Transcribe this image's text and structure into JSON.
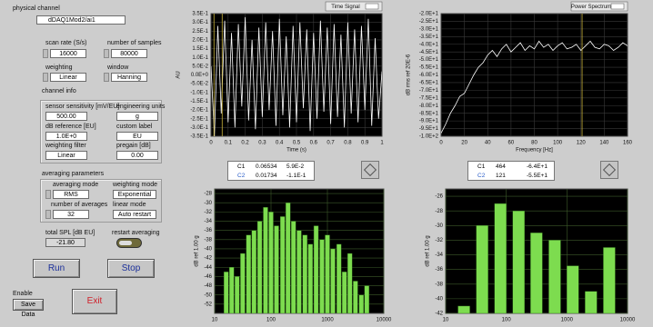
{
  "panel": {
    "physical_channel": {
      "label": "physical channel",
      "value": "dDAQ1Mod2/ai1"
    },
    "scan_rate": {
      "label": "scan rate (S/s)",
      "value": 16000
    },
    "number_of_samples": {
      "label": "number of samples",
      "value": 80000
    },
    "weighting": {
      "label": "weighting",
      "value": "Linear"
    },
    "window": {
      "label": "window",
      "value": "Hanning"
    },
    "channel_info": {
      "title": "channel info",
      "sensor_sensitivity": {
        "label": "sensor sensitivity [mV/EU]",
        "value": "500.00"
      },
      "engineering_units": {
        "label": "engineering units",
        "value": "g"
      },
      "db_reference": {
        "label": "dB reference [EU]",
        "value": "1.0E+0"
      },
      "custom_label": {
        "label": "custom label",
        "value": "EU"
      },
      "weighting_filter": {
        "label": "weighting filter",
        "value": "Linear"
      },
      "pregain": {
        "label": "pregain [dB]",
        "value": "0.00"
      }
    },
    "averaging": {
      "title": "averaging parameters",
      "averaging_mode": {
        "label": "averaging mode",
        "value": "RMS"
      },
      "weighting_mode": {
        "label": "weighting mode",
        "value": "Exponential"
      },
      "number_of_averages": {
        "label": "number of averages",
        "value": 32
      },
      "linear_mode": {
        "label": "linear mode",
        "value": "Auto restart"
      }
    },
    "total_spl": {
      "label": "total SPL [dB EU]",
      "value": "-21.80"
    },
    "restart_averaging": {
      "label": "restart averaging"
    },
    "buttons": {
      "run": "Run",
      "stop": "Stop",
      "exit": "Exit"
    },
    "save": {
      "label": "Enable",
      "button": "Save Data"
    }
  },
  "charts": {
    "time_signal": {
      "type": "line",
      "legend": "Time Signal",
      "xlabel": "Time (s)",
      "ylabel": "AU",
      "color": "#ffffff",
      "x": [
        0,
        0.02,
        0.04,
        0.06,
        0.08,
        0.1,
        0.12,
        0.14,
        0.16,
        0.18,
        0.2,
        0.22,
        0.24,
        0.26,
        0.28,
        0.3,
        0.32,
        0.34,
        0.36,
        0.38,
        0.4,
        0.42,
        0.44,
        0.46,
        0.48,
        0.5,
        0.52,
        0.54,
        0.56,
        0.58,
        0.6,
        0.62,
        0.64,
        0.66,
        0.68,
        0.7,
        0.72,
        0.74,
        0.76,
        0.78,
        0.8,
        0.82,
        0.84,
        0.86,
        0.88,
        0.9,
        0.92,
        0.94,
        0.96,
        0.98,
        1
      ],
      "values": [
        0.05,
        -0.35,
        0.28,
        -0.22,
        0.31,
        -0.27,
        0.24,
        -0.3,
        0.29,
        -0.18,
        0.33,
        -0.26,
        0.2,
        -0.31,
        0.27,
        -0.24,
        0.3,
        -0.2,
        0.25,
        -0.29,
        0.32,
        -0.23,
        0.22,
        -0.3,
        0.28,
        -0.27,
        0.3,
        -0.19,
        0.26,
        -0.32,
        0.24,
        -0.25,
        0.31,
        -0.21,
        0.27,
        -0.28,
        0.29,
        -0.24,
        0.23,
        -0.3,
        0.3,
        -0.22,
        0.26,
        -0.27,
        0.28,
        -0.2,
        0.32,
        -0.29,
        0.21,
        -0.25,
        0.02
      ],
      "xlim": [
        0,
        1
      ],
      "ylim": [
        -0.35,
        0.35
      ],
      "xticks": [
        0,
        0.1,
        0.2,
        0.3,
        0.4,
        0.5,
        0.6,
        0.7,
        0.8,
        0.9,
        1
      ],
      "yticks": [
        {
          "value": 0.35,
          "label": "3.5E-1"
        },
        {
          "value": 0.3,
          "label": "3.0E-1"
        },
        {
          "value": 0.25,
          "label": "2.5E-1"
        },
        {
          "value": 0.2,
          "label": "2.0E-1"
        },
        {
          "value": 0.15,
          "label": "1.5E-1"
        },
        {
          "value": 0.1,
          "label": "1.0E-1"
        },
        {
          "value": 0.05,
          "label": "5.0E-2"
        },
        {
          "value": 0,
          "label": "0.0E+0"
        },
        {
          "value": -0.05,
          "label": "-5.0E-2"
        },
        {
          "value": -0.1,
          "label": "-1.0E-1"
        },
        {
          "value": -0.15,
          "label": "-1.5E-1"
        },
        {
          "value": -0.2,
          "label": "-2.0E-1"
        },
        {
          "value": -0.25,
          "label": "-2.5E-1"
        },
        {
          "value": -0.3,
          "label": "-3.0E-1"
        },
        {
          "value": -0.35,
          "label": "-3.5E-1"
        }
      ],
      "cursors": [
        {
          "name": "C1",
          "x": 0.06534,
          "y": "5.9E-2"
        },
        {
          "name": "C2",
          "x": 0.01734,
          "y": "-1.1E-1"
        }
      ]
    },
    "power_spectrum": {
      "type": "line",
      "legend": "Power Spectrum",
      "xlabel": "Frequency [Hz]",
      "ylabel": "dB rms ref 20E-6",
      "color": "#ffffff",
      "x": [
        0,
        4,
        8,
        12,
        16,
        20,
        24,
        28,
        32,
        36,
        40,
        44,
        48,
        52,
        56,
        60,
        64,
        68,
        72,
        76,
        80,
        84,
        88,
        92,
        96,
        100,
        104,
        108,
        112,
        116,
        120,
        124,
        128,
        132,
        136,
        140,
        144,
        148,
        152,
        156,
        160
      ],
      "values": [
        -98,
        -92,
        -85,
        -80,
        -74,
        -72,
        -66,
        -60,
        -55,
        -52,
        -47,
        -44,
        -48,
        -43,
        -40,
        -45,
        -42,
        -39,
        -44,
        -41,
        -43,
        -38,
        -42,
        -40,
        -44,
        -41,
        -39,
        -43,
        -42,
        -40,
        -44,
        -41,
        -38,
        -42,
        -43,
        -40,
        -41,
        -44,
        -42,
        -39,
        -41
      ],
      "xlim": [
        0,
        160
      ],
      "ylim": [
        -100,
        -20
      ],
      "xticks": [
        0,
        20,
        40,
        60,
        80,
        100,
        120,
        140,
        160
      ],
      "yticks": [
        {
          "value": -20,
          "label": "-2.0E+1"
        },
        {
          "value": -25,
          "label": "-2.5E+1"
        },
        {
          "value": -30,
          "label": "-3.0E+1"
        },
        {
          "value": -35,
          "label": "-3.5E+1"
        },
        {
          "value": -40,
          "label": "-4.0E+1"
        },
        {
          "value": -45,
          "label": "-4.5E+1"
        },
        {
          "value": -50,
          "label": "-5.0E+1"
        },
        {
          "value": -55,
          "label": "-5.5E+1"
        },
        {
          "value": -60,
          "label": "-6.0E+1"
        },
        {
          "value": -65,
          "label": "-6.5E+1"
        },
        {
          "value": -70,
          "label": "-7.0E+1"
        },
        {
          "value": -75,
          "label": "-7.5E+1"
        },
        {
          "value": -80,
          "label": "-8.0E+1"
        },
        {
          "value": -85,
          "label": "-8.5E+1"
        },
        {
          "value": -90,
          "label": "-9.0E+1"
        },
        {
          "value": -95,
          "label": "-9.5E+1"
        },
        {
          "value": -100,
          "label": "-1.0E+2"
        }
      ],
      "cursors": [
        {
          "name": "C1",
          "x": 464,
          "y": "-6.4E+1"
        },
        {
          "name": "C2",
          "x": 121,
          "y": "-5.5E+1"
        }
      ]
    },
    "octave_left": {
      "type": "bar",
      "ylabel": "dB ref 1.00 g",
      "color": "#7ddc4f",
      "xscale": "log",
      "x": [
        16,
        20,
        25,
        31.5,
        40,
        50,
        63,
        80,
        100,
        125,
        160,
        200,
        250,
        315,
        400,
        500,
        630,
        800,
        1000,
        1250,
        1600,
        2000,
        2500,
        3150,
        4000,
        5000
      ],
      "values": [
        -45,
        -44,
        -46,
        -41,
        -37,
        -36,
        -34,
        -31,
        -32,
        -35,
        -33,
        -30,
        -34,
        -36,
        -37,
        -39,
        -35,
        -38,
        -37,
        -40,
        -39,
        -45,
        -41,
        -47,
        -50,
        -48
      ],
      "xlim": [
        10,
        10000
      ],
      "ylim": [
        -54,
        -27
      ],
      "xticks": [
        10,
        100,
        1000,
        10000
      ],
      "yticks": [
        -28,
        -30,
        -32,
        -34,
        -36,
        -38,
        -40,
        -42,
        -44,
        -46,
        -48,
        -50,
        -52
      ]
    },
    "octave_right": {
      "type": "bar",
      "ylabel": "dB ref 1.00 g",
      "color": "#7ddc4f",
      "xscale": "log",
      "x": [
        20,
        40,
        80,
        160,
        315,
        630,
        1250,
        2500,
        5000
      ],
      "values": [
        -41,
        -30,
        -27,
        -28,
        -31,
        -32,
        -35.5,
        -39,
        -33
      ],
      "xlim": [
        10,
        10000
      ],
      "ylim": [
        -42,
        -25
      ],
      "xticks": [
        10,
        100,
        1000,
        10000
      ],
      "yticks": [
        -26,
        -28,
        -30,
        -32,
        -34,
        -36,
        -38,
        -40,
        -42
      ]
    }
  }
}
